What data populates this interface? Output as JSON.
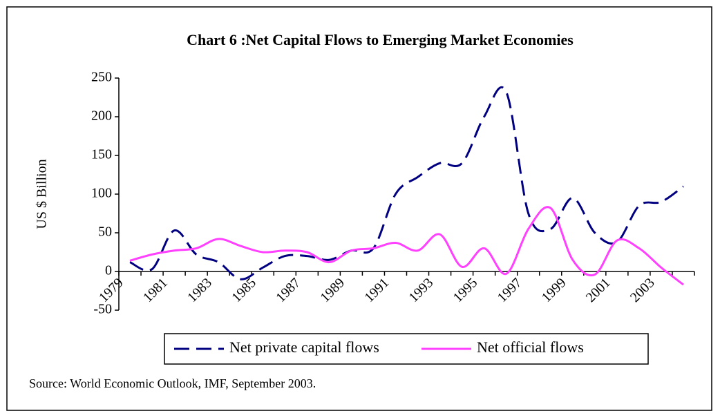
{
  "chart_data": {
    "type": "line",
    "title": "Chart 6 :Net Capital Flows to Emerging Market Economies",
    "y_label": "US $ Billion",
    "source": "Source: World Economic Outlook, IMF, September 2003.",
    "categories": [
      "1979",
      null,
      "1981",
      null,
      "1983",
      null,
      "1985",
      null,
      "1987",
      null,
      "1989",
      null,
      "1991",
      null,
      "1993",
      null,
      "1995",
      null,
      "1997",
      null,
      "1999",
      null,
      "2001",
      null,
      "2003",
      null
    ],
    "series": [
      {
        "name": "Net private capital flows",
        "color": "#000080",
        "dash": true,
        "values": [
          12,
          3,
          53,
          22,
          12,
          -10,
          5,
          20,
          20,
          15,
          27,
          30,
          100,
          122,
          140,
          140,
          200,
          232,
          75,
          55,
          95,
          50,
          38,
          85,
          90,
          110
        ]
      },
      {
        "name": "Net official flows",
        "color": "#ff40ff",
        "dash": false,
        "values": [
          14,
          22,
          27,
          30,
          42,
          33,
          25,
          27,
          25,
          12,
          27,
          30,
          37,
          27,
          48,
          6,
          30,
          -3,
          55,
          82,
          15,
          -4,
          40,
          30,
          5,
          -17
        ]
      }
    ],
    "ylim": [
      -50,
      250
    ],
    "yticks": [
      -50,
      0,
      50,
      100,
      150,
      200,
      250
    ]
  }
}
